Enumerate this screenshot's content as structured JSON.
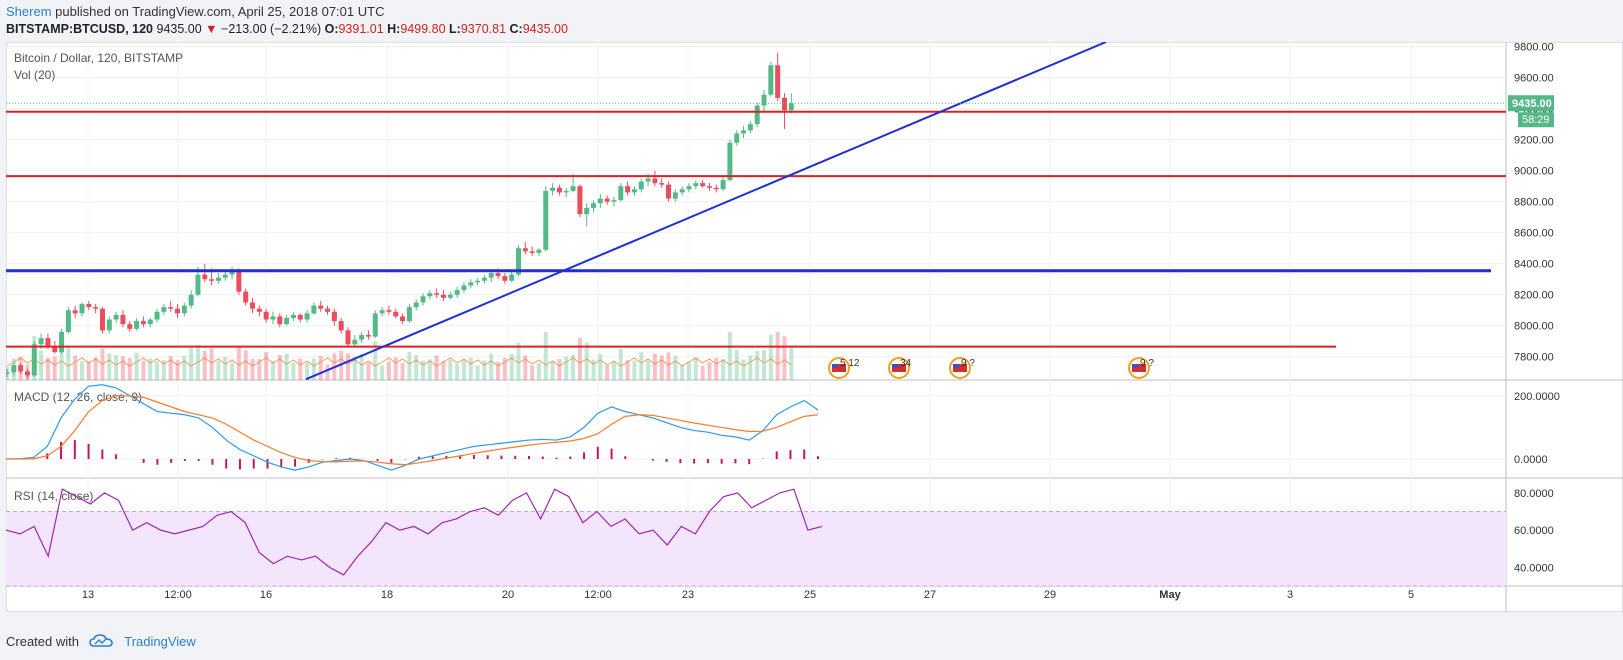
{
  "header": {
    "author": "Sherem",
    "published_text": "published on TradingView.com, April 25, 2018 07:01 UTC",
    "symbol": "BITSTAMP:BTCUSD, 120",
    "last_price": "9435.00",
    "change_arrow": "▼",
    "change": "−213.00 (−2.21%)",
    "o_label": "O:",
    "o_value": "9391.01",
    "h_label": "H:",
    "h_value": "9499.80",
    "l_label": "L:",
    "l_value": "9370.81",
    "c_label": "C:",
    "c_value": "9435.00"
  },
  "footer": {
    "created_with": "Created with",
    "brand": "TradingView"
  },
  "colors": {
    "up": "#53b987",
    "down": "#eb4d5c",
    "support_line": "#e02020",
    "trend_line": "#1f2fd6",
    "ma_line": "#f5863c",
    "macd_line": "#2d9ae8",
    "signal_line": "#f57c2c",
    "hist": "#c2185b",
    "rsi_line": "#9c27b0",
    "rsi_band": "#f3e5fb",
    "price_label": "#53b987"
  },
  "chart_data": [
    {
      "type": "candlestick",
      "title": "Bitcoin / Dollar, 120, BITSTAMP",
      "volume_label": "Vol (20)",
      "ylim": [
        7650,
        9830
      ],
      "y_ticks": [
        "9800.00",
        "9600.00",
        "9400.00",
        "9200.00",
        "9000.00",
        "8800.00",
        "8600.00",
        "8400.00",
        "8200.00",
        "8000.00",
        "7800.00"
      ],
      "price_label": "9435.00",
      "countdown_label": "58:29",
      "x_ticks": [
        "13",
        "12:00",
        "16",
        "18",
        "20",
        "12:00",
        "23",
        "25",
        "27",
        "29",
        "May",
        "3",
        "5"
      ],
      "horizontal_levels": [
        {
          "price": 9380,
          "color": "red"
        },
        {
          "price": 8965,
          "color": "red"
        },
        {
          "price": 8355,
          "color": "blue"
        },
        {
          "price": 7865,
          "color": "red"
        }
      ],
      "trend_line": {
        "from": [
          "Apr 17",
          7700
        ],
        "to": [
          "Apr 27",
          9830
        ]
      },
      "event_markers": [
        "5 12",
        "34",
        "9 ?",
        "9 ?"
      ],
      "series": [
        {
          "name": "BTCUSD",
          "ohlc": [
            [
              7690,
              7720,
              7670,
              7700
            ],
            [
              7700,
              7760,
              7680,
              7745
            ],
            [
              7745,
              7755,
              7690,
              7705
            ],
            [
              7705,
              7720,
              7660,
              7680
            ],
            [
              7680,
              7900,
              7670,
              7880
            ],
            [
              7880,
              7950,
              7850,
              7920
            ],
            [
              7920,
              7950,
              7850,
              7870
            ],
            [
              7870,
              7900,
              7820,
              7830
            ],
            [
              7830,
              7980,
              7820,
              7960
            ],
            [
              7960,
              8120,
              7950,
              8100
            ],
            [
              8100,
              8130,
              8050,
              8080
            ],
            [
              8080,
              8150,
              8060,
              8140
            ],
            [
              8140,
              8160,
              8100,
              8120
            ],
            [
              8120,
              8140,
              8080,
              8110
            ],
            [
              8110,
              8120,
              7950,
              7970
            ],
            [
              7970,
              8060,
              7950,
              8040
            ],
            [
              8040,
              8090,
              8020,
              8070
            ],
            [
              8070,
              8100,
              7990,
              8010
            ],
            [
              8010,
              8030,
              7960,
              7980
            ],
            [
              7980,
              8050,
              7970,
              8030
            ],
            [
              8030,
              8060,
              7990,
              8010
            ],
            [
              8010,
              8050,
              7990,
              8040
            ],
            [
              8040,
              8110,
              8020,
              8090
            ],
            [
              8090,
              8140,
              8070,
              8120
            ],
            [
              8120,
              8160,
              8090,
              8110
            ],
            [
              8110,
              8140,
              8050,
              8080
            ],
            [
              8080,
              8150,
              8060,
              8130
            ],
            [
              8130,
              8230,
              8110,
              8200
            ],
            [
              8200,
              8380,
              8190,
              8330
            ],
            [
              8330,
              8400,
              8280,
              8300
            ],
            [
              8300,
              8370,
              8260,
              8290
            ],
            [
              8290,
              8340,
              8270,
              8310
            ],
            [
              8310,
              8360,
              8290,
              8330
            ],
            [
              8330,
              8380,
              8300,
              8350
            ],
            [
              8350,
              8370,
              8200,
              8220
            ],
            [
              8220,
              8240,
              8130,
              8150
            ],
            [
              8150,
              8180,
              8080,
              8110
            ],
            [
              8110,
              8130,
              8060,
              8090
            ],
            [
              8090,
              8110,
              8020,
              8040
            ],
            [
              8040,
              8090,
              8010,
              8060
            ],
            [
              8060,
              8080,
              7990,
              8010
            ],
            [
              8010,
              8070,
              8000,
              8050
            ],
            [
              8050,
              8090,
              8030,
              8070
            ],
            [
              8070,
              8080,
              8020,
              8040
            ],
            [
              8040,
              8100,
              8020,
              8080
            ],
            [
              8080,
              8150,
              8070,
              8130
            ],
            [
              8130,
              8160,
              8090,
              8110
            ],
            [
              8110,
              8130,
              8070,
              8090
            ],
            [
              8090,
              8110,
              8000,
              8030
            ],
            [
              8030,
              8050,
              7950,
              7970
            ],
            [
              7970,
              7990,
              7860,
              7880
            ],
            [
              7880,
              7940,
              7860,
              7910
            ],
            [
              7910,
              7960,
              7890,
              7940
            ],
            [
              7940,
              7970,
              7910,
              7930
            ],
            [
              7930,
              8100,
              7920,
              8080
            ],
            [
              8080,
              8120,
              8060,
              8100
            ],
            [
              8100,
              8130,
              8070,
              8090
            ],
            [
              8090,
              8110,
              8050,
              8060
            ],
            [
              8060,
              8080,
              8010,
              8030
            ],
            [
              8030,
              8140,
              8020,
              8120
            ],
            [
              8120,
              8170,
              8100,
              8150
            ],
            [
              8150,
              8210,
              8130,
              8190
            ],
            [
              8190,
              8230,
              8170,
              8210
            ],
            [
              8210,
              8240,
              8180,
              8200
            ],
            [
              8200,
              8230,
              8160,
              8180
            ],
            [
              8180,
              8220,
              8170,
              8200
            ],
            [
              8200,
              8250,
              8180,
              8230
            ],
            [
              8230,
              8280,
              8210,
              8260
            ],
            [
              8260,
              8300,
              8240,
              8280
            ],
            [
              8280,
              8310,
              8260,
              8290
            ],
            [
              8290,
              8330,
              8270,
              8310
            ],
            [
              8310,
              8360,
              8280,
              8340
            ],
            [
              8340,
              8370,
              8300,
              8320
            ],
            [
              8320,
              8340,
              8270,
              8290
            ],
            [
              8290,
              8350,
              8280,
              8330
            ],
            [
              8330,
              8520,
              8320,
              8500
            ],
            [
              8500,
              8540,
              8460,
              8480
            ],
            [
              8480,
              8510,
              8450,
              8470
            ],
            [
              8470,
              8500,
              8450,
              8490
            ],
            [
              8490,
              8900,
              8480,
              8870
            ],
            [
              8870,
              8920,
              8840,
              8890
            ],
            [
              8890,
              8910,
              8840,
              8860
            ],
            [
              8860,
              8890,
              8830,
              8870
            ],
            [
              8870,
              8980,
              8860,
              8900
            ],
            [
              8900,
              8910,
              8700,
              8720
            ],
            [
              8720,
              8790,
              8640,
              8760
            ],
            [
              8760,
              8810,
              8730,
              8790
            ],
            [
              8790,
              8850,
              8760,
              8820
            ],
            [
              8820,
              8840,
              8780,
              8800
            ],
            [
              8800,
              8830,
              8770,
              8810
            ],
            [
              8810,
              8920,
              8800,
              8900
            ],
            [
              8900,
              8930,
              8840,
              8860
            ],
            [
              8860,
              8900,
              8840,
              8880
            ],
            [
              8880,
              8950,
              8860,
              8930
            ],
            [
              8930,
              8980,
              8900,
              8950
            ],
            [
              8950,
              9000,
              8900,
              8920
            ],
            [
              8920,
              8950,
              8890,
              8910
            ],
            [
              8910,
              8930,
              8800,
              8820
            ],
            [
              8820,
              8880,
              8800,
              8860
            ],
            [
              8860,
              8900,
              8840,
              8880
            ],
            [
              8880,
              8920,
              8860,
              8900
            ],
            [
              8900,
              8940,
              8880,
              8920
            ],
            [
              8920,
              8940,
              8890,
              8900
            ],
            [
              8900,
              8920,
              8870,
              8890
            ],
            [
              8890,
              8910,
              8860,
              8880
            ],
            [
              8880,
              8960,
              8870,
              8940
            ],
            [
              8940,
              9200,
              8930,
              9180
            ],
            [
              9180,
              9260,
              9160,
              9240
            ],
            [
              9240,
              9290,
              9210,
              9260
            ],
            [
              9260,
              9320,
              9240,
              9300
            ],
            [
              9300,
              9440,
              9280,
              9420
            ],
            [
              9420,
              9520,
              9380,
              9490
            ],
            [
              9490,
              9700,
              9480,
              9680
            ],
            [
              9680,
              9760,
              9450,
              9470
            ],
            [
              9470,
              9500,
              9270,
              9390
            ],
            [
              9390,
              9500,
              9370,
              9435
            ]
          ]
        }
      ]
    },
    {
      "type": "line",
      "title": "MACD (12, 26, close, 9)",
      "ylim": [
        -60,
        250
      ],
      "y_ticks": [
        "200.0000",
        "0.0000"
      ],
      "series": [
        {
          "name": "MACD",
          "values": [
            0,
            1,
            5,
            40,
            130,
            190,
            230,
            235,
            225,
            200,
            175,
            150,
            145,
            140,
            130,
            100,
            60,
            30,
            10,
            -10,
            -25,
            -35,
            -25,
            -10,
            -5,
            0,
            -5,
            -20,
            -35,
            -20,
            0,
            10,
            20,
            30,
            40,
            45,
            50,
            55,
            60,
            62,
            60,
            70,
            100,
            145,
            165,
            150,
            140,
            130,
            115,
            100,
            90,
            85,
            75,
            70,
            60,
            90,
            140,
            165,
            185,
            155
          ]
        },
        {
          "name": "Signal",
          "values": [
            0,
            0,
            1,
            10,
            40,
            90,
            150,
            185,
            200,
            200,
            195,
            180,
            165,
            150,
            140,
            130,
            110,
            85,
            60,
            40,
            20,
            5,
            -5,
            -8,
            -9,
            -7,
            -6,
            -10,
            -15,
            -18,
            -12,
            -5,
            3,
            10,
            18,
            25,
            32,
            38,
            44,
            49,
            53,
            57,
            65,
            80,
            110,
            135,
            140,
            138,
            130,
            122,
            114,
            107,
            100,
            93,
            87,
            88,
            100,
            118,
            135,
            140
          ]
        }
      ]
    },
    {
      "type": "line",
      "title": "RSI (14, close)",
      "ylim": [
        30,
        88
      ],
      "y_ticks": [
        "80.0000",
        "60.0000",
        "40.0000"
      ],
      "band": [
        30,
        70
      ],
      "series": [
        {
          "name": "RSI",
          "values": [
            60,
            58,
            62,
            46,
            82,
            78,
            74,
            80,
            76,
            60,
            64,
            60,
            58,
            60,
            62,
            68,
            70,
            64,
            48,
            42,
            46,
            44,
            46,
            40,
            36,
            46,
            54,
            64,
            60,
            62,
            58,
            64,
            66,
            70,
            72,
            68,
            76,
            80,
            66,
            82,
            78,
            64,
            70,
            62,
            66,
            58,
            60,
            52,
            62,
            58,
            70,
            78,
            80,
            72,
            76,
            80,
            82,
            60,
            62
          ]
        }
      ]
    }
  ]
}
